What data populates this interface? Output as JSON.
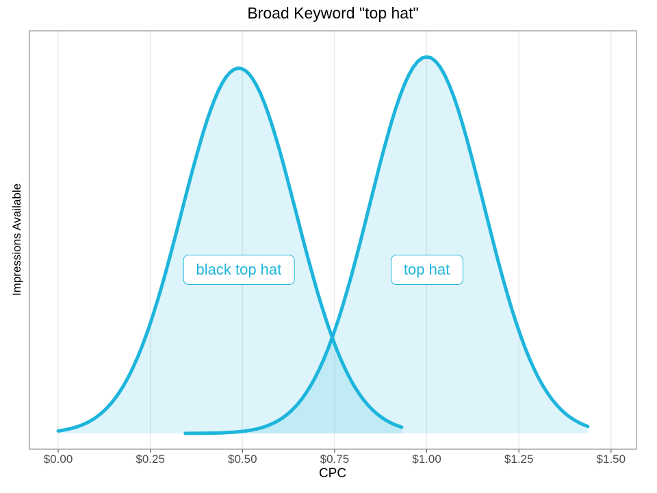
{
  "chart_data": {
    "type": "area",
    "subtype": "density-curves",
    "title": "Broad Keyword \"top hat\"",
    "xlabel": "CPC",
    "ylabel": "Impressions Available",
    "x_ticks": [
      {
        "label": "$0.00",
        "value": 0.0
      },
      {
        "label": "$0.25",
        "value": 0.25
      },
      {
        "label": "$0.50",
        "value": 0.5
      },
      {
        "label": "$0.75",
        "value": 0.75
      },
      {
        "label": "$1.00",
        "value": 1.0
      },
      {
        "label": "$1.25",
        "value": 1.25
      },
      {
        "label": "$1.50",
        "value": 1.5
      }
    ],
    "y_ticks": [],
    "xlim": [
      -0.078,
      1.569
    ],
    "ylim": [
      0,
      1.07
    ],
    "grid": "vertical-major-only",
    "legend": "none",
    "series": [
      {
        "name": "black top hat",
        "distribution": "normal",
        "mean_cpc": 0.49,
        "sd_cpc": 0.155,
        "peak_relative_height": 0.97,
        "x_range": [
          0.0,
          0.932
        ]
      },
      {
        "name": "top hat",
        "distribution": "normal",
        "mean_cpc": 1.0,
        "sd_cpc": 0.155,
        "peak_relative_height": 1.0,
        "x_range": [
          0.345,
          1.437
        ]
      }
    ],
    "annotations": [
      {
        "text": "black top hat",
        "x_cpc": 0.49,
        "y_rel": 0.435
      },
      {
        "text": "top hat",
        "x_cpc": 1.0,
        "y_rel": 0.435
      }
    ],
    "colors": {
      "curve_stroke": "#1eb5dc",
      "curve_fill": "#1eb5dc",
      "curve_fill_opacity": 0.15,
      "gridline": "#e7e7e7",
      "panel_border": "#8f8f8f",
      "panel_background": "#ffffff",
      "tick_mark": "#333333",
      "tick_label": "#4d4d4d",
      "title_color": "#000000"
    }
  }
}
